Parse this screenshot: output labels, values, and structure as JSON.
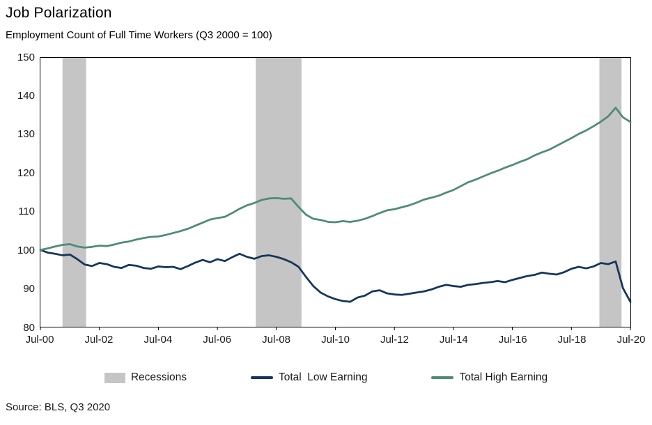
{
  "header": {
    "title": "Job Polarization",
    "subtitle": "Employment Count of Full Time Workers (Q3 2000 = 100)"
  },
  "footer": {
    "source": "Source: BLS, Q3 2020"
  },
  "legend": {
    "recessions_label": "Recessions",
    "low_label": "Total  Low Earning",
    "high_label": "Total High Earning"
  },
  "colors": {
    "low_line": "#16365c",
    "high_line": "#4e8c78",
    "recession_band": "#c5c5c5",
    "axis_frame": "#000000"
  },
  "chart_data": {
    "type": "line",
    "title": "Job Polarization",
    "subtitle": "Employment Count of Full Time Workers (Q3 2000 = 100)",
    "source": "Source: BLS, Q3 2020",
    "grid": false,
    "legend_position": "bottom",
    "x_axis": {
      "start_period": "2000Q3",
      "end_period": "2020Q3",
      "frequency": "quarterly",
      "span_years": 20,
      "tick_labels": [
        "Jul-00",
        "Jul-02",
        "Jul-04",
        "Jul-06",
        "Jul-08",
        "Jul-10",
        "Jul-12",
        "Jul-14",
        "Jul-16",
        "Jul-18",
        "Jul-20"
      ]
    },
    "y_axis": {
      "min": 80,
      "max": 150,
      "step": 10,
      "ticks": [
        150,
        140,
        130,
        120,
        110,
        100,
        90,
        80
      ]
    },
    "recession_bands_years_from_start": [
      [
        0.75,
        1.55
      ],
      [
        7.3,
        8.85
      ],
      [
        18.95,
        19.7
      ]
    ],
    "series": [
      {
        "name": "Total  Low Earning",
        "color": "#16365c",
        "values": [
          100.0,
          99.3,
          99.0,
          98.6,
          98.8,
          97.6,
          96.2,
          95.8,
          96.6,
          96.3,
          95.6,
          95.3,
          96.1,
          95.9,
          95.3,
          95.1,
          95.7,
          95.5,
          95.6,
          95.0,
          95.8,
          96.7,
          97.4,
          96.8,
          97.6,
          97.1,
          98.1,
          99.0,
          98.2,
          97.7,
          98.4,
          98.6,
          98.2,
          97.6,
          96.8,
          95.6,
          93.0,
          90.6,
          88.9,
          87.9,
          87.2,
          86.7,
          86.5,
          87.6,
          88.1,
          89.2,
          89.5,
          88.7,
          88.4,
          88.3,
          88.6,
          88.9,
          89.2,
          89.7,
          90.4,
          90.9,
          90.6,
          90.4,
          90.9,
          91.1,
          91.4,
          91.6,
          91.9,
          91.6,
          92.2,
          92.7,
          93.2,
          93.5,
          94.1,
          93.8,
          93.6,
          94.2,
          95.1,
          95.6,
          95.2,
          95.7,
          96.6,
          96.3,
          97.0,
          90.0,
          86.5
        ]
      },
      {
        "name": "Total High Earning",
        "color": "#4e8c78",
        "values": [
          100.0,
          100.4,
          100.9,
          101.3,
          101.5,
          100.9,
          100.6,
          100.8,
          101.1,
          101.0,
          101.4,
          101.9,
          102.2,
          102.7,
          103.1,
          103.4,
          103.5,
          103.9,
          104.4,
          104.9,
          105.5,
          106.3,
          107.1,
          107.9,
          108.3,
          108.6,
          109.6,
          110.7,
          111.6,
          112.2,
          113.0,
          113.4,
          113.5,
          113.3,
          113.4,
          111.2,
          109.2,
          108.1,
          107.8,
          107.3,
          107.2,
          107.5,
          107.3,
          107.6,
          108.1,
          108.8,
          109.6,
          110.3,
          110.6,
          111.1,
          111.6,
          112.3,
          113.1,
          113.6,
          114.1,
          114.9,
          115.6,
          116.6,
          117.6,
          118.3,
          119.1,
          119.9,
          120.6,
          121.4,
          122.1,
          122.9,
          123.6,
          124.6,
          125.4,
          126.1,
          127.1,
          128.1,
          129.1,
          130.2,
          131.1,
          132.2,
          133.4,
          134.8,
          137.0,
          134.5,
          133.3
        ]
      }
    ]
  }
}
